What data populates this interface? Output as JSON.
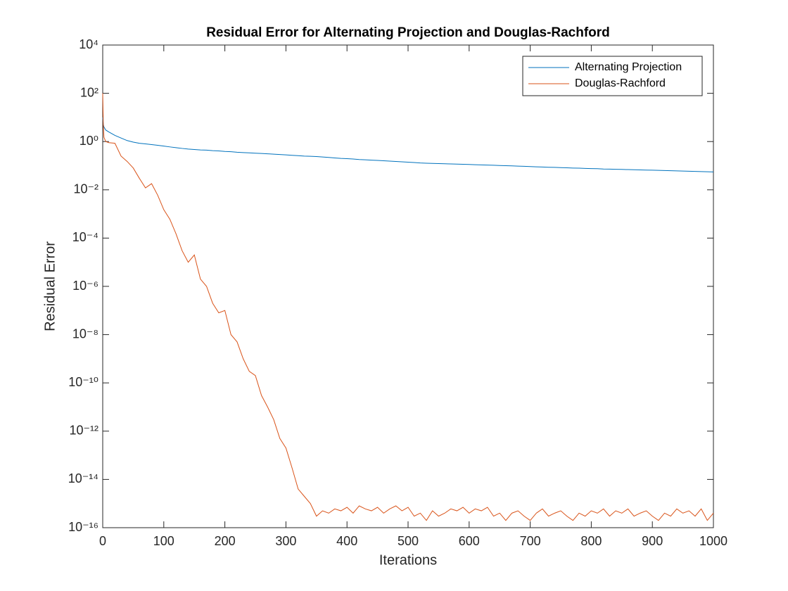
{
  "chart_data": {
    "type": "line",
    "title": "Residual Error for Alternating Projection and Douglas-Rachford",
    "xlabel": "Iterations",
    "ylabel": "Residual Error",
    "x": [
      0,
      1,
      2,
      5,
      10,
      20,
      30,
      40,
      50,
      60,
      70,
      80,
      90,
      100,
      110,
      120,
      130,
      140,
      150,
      160,
      170,
      180,
      190,
      200,
      210,
      220,
      230,
      240,
      250,
      260,
      270,
      280,
      290,
      300,
      310,
      320,
      330,
      340,
      350,
      360,
      370,
      380,
      390,
      400,
      410,
      420,
      430,
      440,
      450,
      460,
      470,
      480,
      490,
      500,
      510,
      520,
      530,
      540,
      550,
      560,
      570,
      580,
      590,
      600,
      610,
      620,
      630,
      640,
      650,
      660,
      670,
      680,
      690,
      700,
      710,
      720,
      730,
      740,
      750,
      760,
      770,
      780,
      790,
      800,
      810,
      820,
      830,
      840,
      850,
      860,
      870,
      880,
      890,
      900,
      910,
      920,
      930,
      940,
      950,
      960,
      970,
      980,
      990,
      1000
    ],
    "series": [
      {
        "name": "Alternating Projection",
        "color": "#0072bd",
        "values": [
          10,
          5,
          4,
          3,
          2.5,
          1.8,
          1.4,
          1.1,
          0.95,
          0.85,
          0.8,
          0.75,
          0.7,
          0.65,
          0.6,
          0.56,
          0.52,
          0.49,
          0.47,
          0.45,
          0.44,
          0.42,
          0.41,
          0.39,
          0.38,
          0.36,
          0.35,
          0.34,
          0.33,
          0.32,
          0.31,
          0.3,
          0.29,
          0.28,
          0.27,
          0.26,
          0.25,
          0.245,
          0.24,
          0.23,
          0.22,
          0.21,
          0.2,
          0.195,
          0.19,
          0.18,
          0.175,
          0.17,
          0.165,
          0.16,
          0.155,
          0.15,
          0.145,
          0.14,
          0.135,
          0.13,
          0.127,
          0.124,
          0.122,
          0.12,
          0.118,
          0.116,
          0.114,
          0.112,
          0.11,
          0.108,
          0.106,
          0.104,
          0.102,
          0.1,
          0.098,
          0.096,
          0.094,
          0.092,
          0.09,
          0.088,
          0.086,
          0.085,
          0.083,
          0.082,
          0.08,
          0.079,
          0.077,
          0.076,
          0.075,
          0.073,
          0.072,
          0.071,
          0.07,
          0.069,
          0.068,
          0.067,
          0.066,
          0.065,
          0.064,
          0.063,
          0.062,
          0.061,
          0.06,
          0.059,
          0.058,
          0.057,
          0.056,
          0.055
        ]
      },
      {
        "name": "Douglas-Rachford",
        "color": "#d95319",
        "values": [
          100,
          5,
          1.5,
          1,
          0.9,
          0.85,
          0.25,
          0.15,
          0.08,
          0.03,
          0.012,
          0.018,
          0.006,
          0.0015,
          0.0006,
          0.00015,
          3e-05,
          1e-05,
          2e-05,
          2e-06,
          1e-06,
          2e-07,
          8e-08,
          1e-07,
          1e-08,
          5e-09,
          1e-09,
          3e-10,
          2e-10,
          3e-11,
          1e-11,
          3e-12,
          5e-13,
          2e-13,
          3e-14,
          4e-15,
          2e-15,
          1e-15,
          3e-16,
          5e-16,
          4e-16,
          6e-16,
          5e-16,
          7e-16,
          4e-16,
          8e-16,
          6e-16,
          5e-16,
          7e-16,
          4e-16,
          6e-16,
          8e-16,
          5e-16,
          7e-16,
          3e-16,
          4e-16,
          2e-16,
          5e-16,
          3e-16,
          4e-16,
          6e-16,
          5e-16,
          7e-16,
          4e-16,
          6e-16,
          5e-16,
          7e-16,
          3e-16,
          4e-16,
          2e-16,
          4e-16,
          5e-16,
          3e-16,
          2e-16,
          4e-16,
          6e-16,
          3e-16,
          4e-16,
          5e-16,
          3e-16,
          2e-16,
          4e-16,
          3e-16,
          5e-16,
          4e-16,
          6e-16,
          3e-16,
          5e-16,
          4e-16,
          6e-16,
          3e-16,
          4e-16,
          5e-16,
          3e-16,
          2e-16,
          4e-16,
          3e-16,
          6e-16,
          4e-16,
          5e-16,
          3e-16,
          6e-16,
          2e-16,
          4e-16
        ]
      }
    ],
    "xlim": [
      0,
      1000
    ],
    "xticks": [
      0,
      100,
      200,
      300,
      400,
      500,
      600,
      700,
      800,
      900,
      1000
    ],
    "ylim": [
      1e-16,
      10000
    ],
    "log_y": true,
    "yticks": [
      {
        "value": 1e-16,
        "label": "10⁻¹⁶"
      },
      {
        "value": 1e-14,
        "label": "10⁻¹⁴"
      },
      {
        "value": 1e-12,
        "label": "10⁻¹²"
      },
      {
        "value": 1e-10,
        "label": "10⁻¹⁰"
      },
      {
        "value": 1e-08,
        "label": "10⁻⁸"
      },
      {
        "value": 1e-06,
        "label": "10⁻⁶"
      },
      {
        "value": 0.0001,
        "label": "10⁻⁴"
      },
      {
        "value": 0.01,
        "label": "10⁻²"
      },
      {
        "value": 1,
        "label": "10⁰"
      },
      {
        "value": 100,
        "label": "10²"
      },
      {
        "value": 10000,
        "label": "10⁴"
      }
    ],
    "grid": false,
    "legend": "upper right"
  }
}
